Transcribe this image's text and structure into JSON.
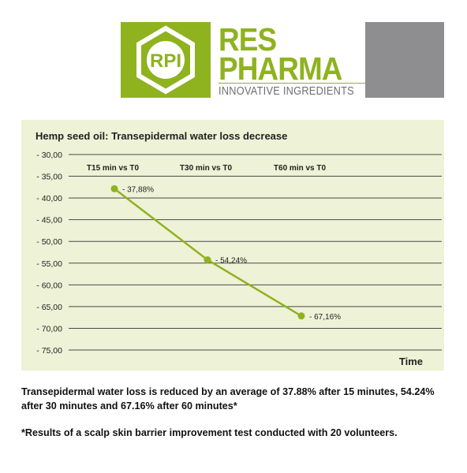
{
  "logo": {
    "mark": "RPI",
    "line1": "RES",
    "line2": "PHARMA",
    "tagline": "INNOVATIVE INGREDIENTS",
    "green": "#8fb21f",
    "gray": "#8e8e90"
  },
  "chart_data": {
    "type": "line",
    "title": "Hemp seed oil: Transepidermal water loss decrease",
    "xlabel": "Time",
    "ylabel": "",
    "categories": [
      "T15 min vs T0",
      "T30 min vs T0",
      "T60 min vs T0"
    ],
    "series": [
      {
        "values": [
          -37.88,
          -54.24,
          -67.16
        ],
        "labels": [
          "- 37,88%",
          "- 54,24%",
          "- 67,16%"
        ]
      }
    ],
    "ylim": [
      -75,
      -30
    ],
    "yticks": [
      -30,
      -35,
      -40,
      -45,
      -50,
      -55,
      -60,
      -65,
      -70,
      -75
    ],
    "ytick_labels": [
      "- 30,00",
      "- 35,00",
      "- 40,00",
      "- 45,00",
      "- 50,00",
      "- 55,00",
      "- 60,00",
      "- 65,00",
      "- 70,00",
      "- 75,00"
    ],
    "grid": true,
    "line_color": "#8fb21f",
    "background_color": "#eef2d6"
  },
  "caption": "Transepidermal water loss is reduced by an average of 37.88% after 15 minutes, 54.24% after 30 minutes and 67.16% after 60 minutes*",
  "footnote": "*Results of a scalp skin barrier improvement test conducted with 20 volunteers."
}
